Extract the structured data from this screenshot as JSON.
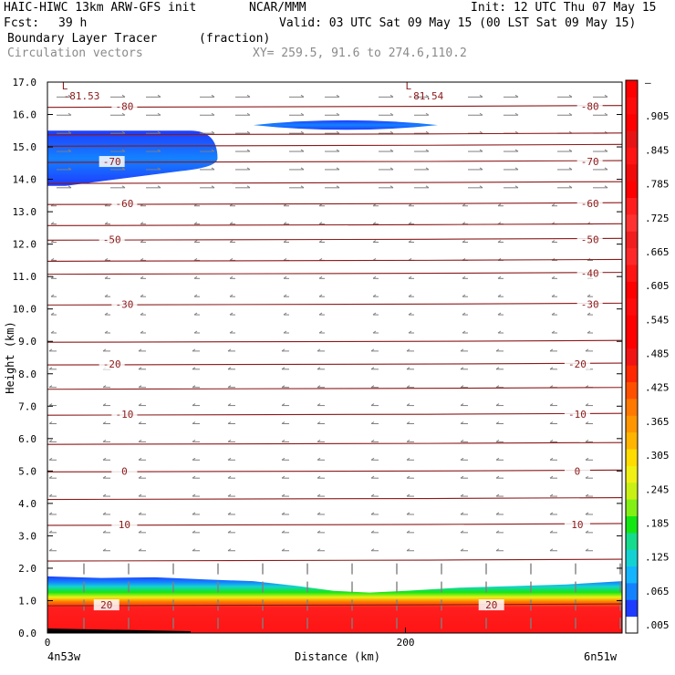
{
  "header": {
    "model": "HAIC-HIWC 13km ARW-GFS init",
    "org": "NCAR/MMM",
    "init": "Init: 12 UTC Thu 07 May 15",
    "fcst_label": "Fcst:",
    "fcst_value": "39 h",
    "valid": "Valid: 03 UTC Sat 09 May 15 (00 LST Sat 09 May 15)",
    "field": "Boundary Layer Tracer",
    "units": "(fraction)",
    "vectors": "Circulation vectors",
    "xy": "XY= 259.5, 91.6 to 274.6,110.2"
  },
  "colors": {
    "contour": "#8b1a1a",
    "vector": "#808080",
    "axis": "#000000"
  },
  "chart_data": {
    "type": "heatmap",
    "title": "Boundary Layer Tracer",
    "units": "(fraction)",
    "xlabel": "Distance (km)",
    "ylabel": "Height (km)",
    "x_ticks": [
      {
        "value": 0,
        "label": "0"
      },
      {
        "value": 200,
        "label": "200"
      }
    ],
    "x_end_labels": {
      "left": "4n53w",
      "right": "6n51w"
    },
    "xlim": [
      0,
      321
    ],
    "ylim": [
      0,
      17
    ],
    "y_ticks": [
      "0.0",
      "1.0",
      "2.0",
      "3.0",
      "4.0",
      "5.0",
      "6.0",
      "7.0",
      "8.0",
      "9.0",
      "10.0",
      "11.0",
      "12.0",
      "13.0",
      "14.0",
      "15.0",
      "16.0",
      "17.0"
    ],
    "colorbar": {
      "labels": [
        ".005",
        ".065",
        ".125",
        ".185",
        ".245",
        ".305",
        ".365",
        ".425",
        ".485",
        ".545",
        ".605",
        ".665",
        ".725",
        ".785",
        ".845",
        ".905",
        "–"
      ],
      "colors": [
        "#ffffff",
        "#1e3cff",
        "#1482ff",
        "#14b4ff",
        "#14d2d2",
        "#14dc8c",
        "#14e614",
        "#82f014",
        "#c8f014",
        "#f0f014",
        "#ffdc00",
        "#ffb400",
        "#ff9600",
        "#ff7800",
        "#ff5000",
        "#ff2800",
        "#f01414",
        "#ff0000",
        "#ff0000",
        "#ff0a0a",
        "#ff0000",
        "#ff1414",
        "#ff2828",
        "#f01e1e",
        "#ff3232",
        "#ff1e1e",
        "#ff0000",
        "#f00a0a",
        "#ff1414",
        "#e61414",
        "#ff0000",
        "#ff0a0a",
        "#ff0000"
      ]
    },
    "temperature_contours": [
      {
        "height_km": 0.87,
        "label": "20",
        "label_x_km": [
          33,
          248
        ]
      },
      {
        "height_km": 3.35,
        "label": "10",
        "label_x_km": [
          43,
          296
        ]
      },
      {
        "height_km": 5.0,
        "label": "0",
        "label_x_km": [
          43,
          296
        ]
      },
      {
        "height_km": 6.75,
        "label": "-10",
        "label_x_km": [
          43,
          296
        ]
      },
      {
        "height_km": 8.3,
        "label": "-20",
        "label_x_km": [
          36,
          296
        ]
      },
      {
        "height_km": 10.15,
        "label": "-30",
        "label_x_km": [
          43,
          303
        ]
      },
      {
        "height_km": 11.1,
        "label": "-40",
        "label_x_km": [
          303
        ]
      },
      {
        "height_km": 12.15,
        "label": "-50",
        "label_x_km": [
          36,
          303
        ]
      },
      {
        "height_km": 13.25,
        "label": "-60",
        "label_x_km": [
          43,
          303
        ]
      },
      {
        "height_km": 14.55,
        "label": "-70",
        "label_x_km": [
          36,
          303
        ]
      },
      {
        "height_km": 16.25,
        "label": "-80",
        "label_x_km": [
          43,
          303
        ]
      }
    ],
    "extra_contour_heights_km": [
      2.25,
      4.15,
      5.85,
      7.55,
      9.0,
      11.5,
      12.6,
      13.9,
      15.05,
      15.4
    ],
    "minima": [
      {
        "marker": "L",
        "value": "-81.53",
        "x_km": 8
      },
      {
        "marker": "L",
        "value": "-81.54",
        "x_km": 200
      }
    ],
    "boundary_layer_top_km": [
      [
        0,
        1.75
      ],
      [
        30,
        1.7
      ],
      [
        60,
        1.72
      ],
      [
        90,
        1.65
      ],
      [
        115,
        1.6
      ],
      [
        140,
        1.45
      ],
      [
        160,
        1.3
      ],
      [
        180,
        1.25
      ],
      [
        200,
        1.3
      ],
      [
        230,
        1.4
      ],
      [
        260,
        1.45
      ],
      [
        290,
        1.5
      ],
      [
        321,
        1.6
      ]
    ],
    "upper_plumes": [
      {
        "x_start_km": 0,
        "x_end_km": 95,
        "bottom_km": 13.8,
        "top_km": 15.5
      },
      {
        "x_start_km": 115,
        "x_end_km": 218,
        "bottom_km": 15.55,
        "top_km": 15.8
      }
    ]
  }
}
